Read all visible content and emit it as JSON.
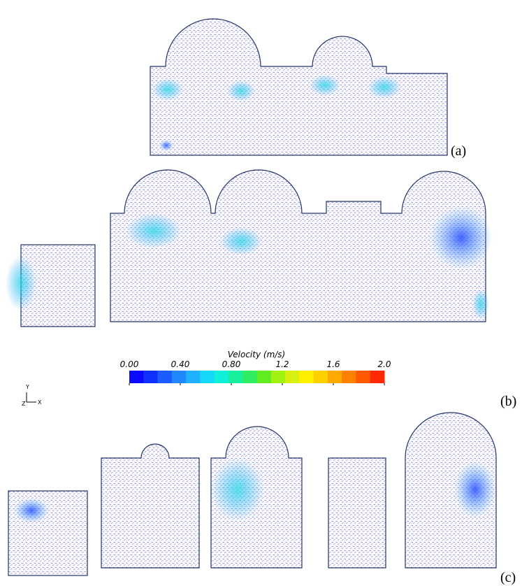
{
  "panels": [
    {
      "label": "(a)"
    },
    {
      "label": "(b)"
    },
    {
      "label": "(c)"
    }
  ],
  "colorbar": {
    "title": "Velocity (m/s)",
    "lim": [
      0,
      2
    ],
    "ticks": [
      {
        "value": 0,
        "label": "0.00"
      },
      {
        "value": 0.4,
        "label": "0.40"
      },
      {
        "value": 0.8,
        "label": "0.80"
      },
      1.2,
      1.6,
      {
        "value": 2,
        "label": "2.0"
      }
    ],
    "colors": [
      "#0a0aff",
      "#1030ff",
      "#1a5cff",
      "#1f88ff",
      "#1fb0ff",
      "#14d8f5",
      "#10f0d8",
      "#18f0a0",
      "#30ec60",
      "#60ec20",
      "#a0f010",
      "#d8f010",
      "#fff000",
      "#ffd000",
      "#ffa800",
      "#ff8000",
      "#ff5800",
      "#ff2800"
    ]
  },
  "axes_triad": {
    "y": "Y",
    "z": "Z",
    "x": "X"
  }
}
